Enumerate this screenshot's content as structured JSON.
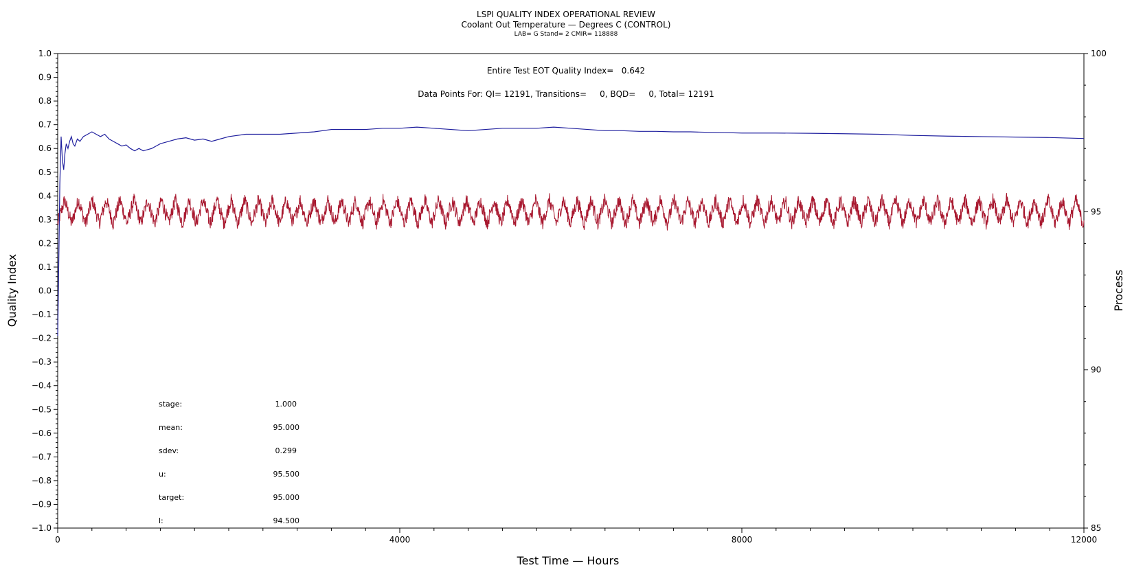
{
  "chart_data": {
    "type": "line",
    "title": "LSPI QUALITY INDEX OPERATIONAL REVIEW",
    "subtitle": "Coolant Out Temperature — Degrees C (CONTROL)",
    "subtitle2": "LAB= G Stand= 2 CMIR= 118888",
    "xlabel": "Test Time — Hours",
    "ylabel": "Quality Index",
    "y2label": "Process",
    "xlim": [
      0,
      12000
    ],
    "ylim": [
      -1.0,
      1.0
    ],
    "y2lim": [
      85,
      100
    ],
    "x_ticks": [
      0,
      4000,
      8000,
      12000
    ],
    "x_tick_labels": [
      "0",
      "4000",
      "8000",
      "12000"
    ],
    "y_ticks": [
      1.0,
      0.9,
      0.8,
      0.7,
      0.6,
      0.5,
      0.4,
      0.3,
      0.2,
      0.1,
      0.0,
      -0.1,
      -0.2,
      -0.3,
      -0.4,
      -0.5,
      -0.6,
      -0.7,
      -0.8,
      -0.9,
      -1.0
    ],
    "y_tick_labels": [
      "1.0",
      "0.9",
      "0.8",
      "0.7",
      "0.6",
      "0.5",
      "0.4",
      "0.3",
      "0.2",
      "0.1",
      "0.0",
      "−0.1",
      "−0.2",
      "−0.3",
      "−0.4",
      "−0.5",
      "−0.6",
      "−0.7",
      "−0.8",
      "−0.9",
      "−1.0"
    ],
    "y2_ticks": [
      100,
      95,
      90,
      85
    ],
    "y2_tick_labels": [
      "100",
      "95",
      "90",
      "85"
    ],
    "annotations": {
      "quality_index": "Entire Test EOT Quality Index=   0.642",
      "data_points": "Data Points For: QI= 12191, Transitions=     0, BQD=     0, Total= 12191"
    },
    "stats": [
      {
        "label": "stage:",
        "value": "1.000"
      },
      {
        "label": "mean:",
        "value": "95.000"
      },
      {
        "label": "sdev:",
        "value": "0.299"
      },
      {
        "label": "u:",
        "value": "95.500"
      },
      {
        "label": "target:",
        "value": "95.000"
      },
      {
        "label": "l:",
        "value": "94.500"
      }
    ],
    "series": [
      {
        "axis": "left",
        "color": "#1f1f9e",
        "x": [
          0,
          10,
          25,
          40,
          55,
          70,
          85,
          100,
          120,
          140,
          160,
          180,
          200,
          230,
          260,
          300,
          350,
          400,
          450,
          500,
          550,
          600,
          650,
          700,
          750,
          800,
          850,
          900,
          950,
          1000,
          1050,
          1100,
          1150,
          1200,
          1300,
          1400,
          1500,
          1600,
          1700,
          1800,
          1900,
          2000,
          2200,
          2400,
          2600,
          2800,
          3000,
          3200,
          3400,
          3600,
          3800,
          4000,
          4200,
          4400,
          4600,
          4800,
          5000,
          5200,
          5400,
          5600,
          5800,
          6000,
          6200,
          6400,
          6600,
          6800,
          7000,
          7200,
          7400,
          7600,
          7800,
          8000,
          8400,
          8800,
          9200,
          9600,
          10000,
          10400,
          10800,
          11200,
          11600,
          12000
        ],
        "values": [
          -0.19,
          0.05,
          0.45,
          0.65,
          0.55,
          0.51,
          0.58,
          0.62,
          0.6,
          0.63,
          0.65,
          0.62,
          0.61,
          0.64,
          0.63,
          0.65,
          0.66,
          0.67,
          0.66,
          0.65,
          0.66,
          0.64,
          0.63,
          0.62,
          0.61,
          0.615,
          0.6,
          0.59,
          0.6,
          0.59,
          0.595,
          0.6,
          0.61,
          0.62,
          0.63,
          0.64,
          0.645,
          0.635,
          0.64,
          0.63,
          0.64,
          0.65,
          0.66,
          0.66,
          0.66,
          0.665,
          0.67,
          0.68,
          0.68,
          0.68,
          0.685,
          0.685,
          0.69,
          0.685,
          0.68,
          0.675,
          0.68,
          0.685,
          0.685,
          0.685,
          0.69,
          0.685,
          0.68,
          0.675,
          0.675,
          0.672,
          0.672,
          0.67,
          0.67,
          0.668,
          0.667,
          0.665,
          0.665,
          0.664,
          0.662,
          0.66,
          0.655,
          0.652,
          0.65,
          0.648,
          0.646,
          0.642
        ]
      },
      {
        "axis": "right",
        "color": "#a8182f",
        "mean": 95.0,
        "sdev": 0.299,
        "cycle_hours": 162,
        "x_range": [
          0,
          12000
        ],
        "values_range": [
          94.3,
          95.7
        ]
      }
    ]
  }
}
